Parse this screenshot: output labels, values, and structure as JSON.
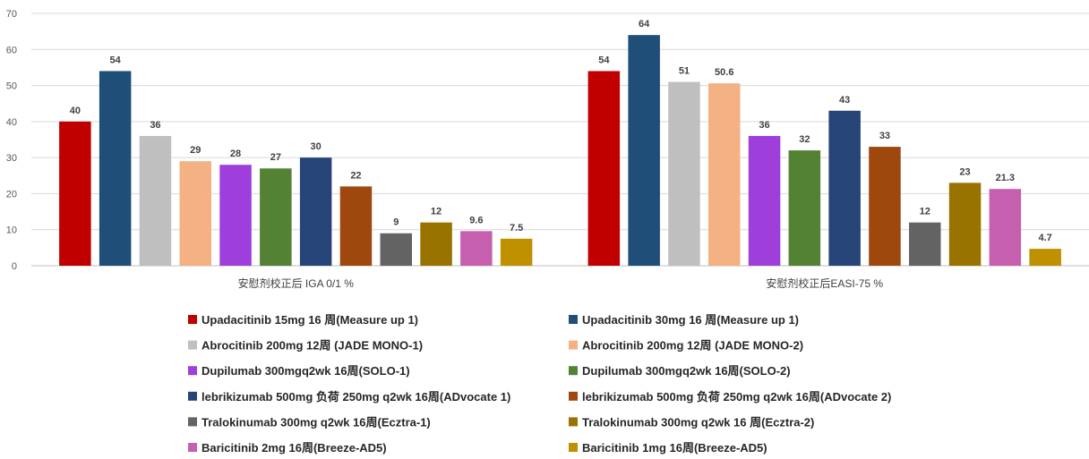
{
  "chart_data": {
    "type": "bar",
    "categories": [
      "安慰剂校正后 IGA 0/1 %",
      "安慰剂校正后EASI-75 %"
    ],
    "ylim": [
      0,
      70
    ],
    "yticks": [
      0,
      10,
      20,
      30,
      40,
      50,
      60,
      70
    ],
    "grid": true,
    "legend_position": "bottom",
    "series": [
      {
        "name": "Upadacitinib 15mg 16 周(Measure up 1)",
        "color": "#C00000",
        "values": [
          40,
          54
        ],
        "labels": [
          "40",
          "54"
        ]
      },
      {
        "name": "Upadacitinib 30mg 16 周(Measure up 1)",
        "color": "#1F4E79",
        "values": [
          54,
          64
        ],
        "labels": [
          "54",
          "64"
        ]
      },
      {
        "name": "Abrocitinib 200mg 12周 (JADE MONO-1)",
        "color": "#BFBFBF",
        "values": [
          36,
          51
        ],
        "labels": [
          "36",
          "51"
        ]
      },
      {
        "name": "Abrocitinib 200mg 12周 (JADE MONO-2)",
        "color": "#F4B183",
        "values": [
          29,
          50.6
        ],
        "labels": [
          "29",
          "50.6"
        ]
      },
      {
        "name": "Dupilumab 300mgq2wk 16周(SOLO-1)",
        "color": "#9E3FDB",
        "values": [
          28,
          36
        ],
        "labels": [
          "28",
          "36"
        ]
      },
      {
        "name": "Dupilumab 300mgq2wk 16周(SOLO-2)",
        "color": "#548235",
        "values": [
          27,
          32
        ],
        "labels": [
          "27",
          "32"
        ]
      },
      {
        "name": "lebrikizumab  500mg 负荷 250mg q2wk 16周(ADvocate 1)",
        "color": "#264478",
        "values": [
          30,
          43
        ],
        "labels": [
          "30",
          "43"
        ]
      },
      {
        "name": "lebrikizumab  500mg 负荷 250mg q2wk 16周(ADvocate 2)",
        "color": "#9E480E",
        "values": [
          22,
          33
        ],
        "labels": [
          "22",
          "33"
        ]
      },
      {
        "name": "Tralokinumab 300mg q2wk 16周(Ecztra-1)",
        "color": "#636363",
        "values": [
          9,
          12
        ],
        "labels": [
          "9",
          "12"
        ]
      },
      {
        "name": "Tralokinumab 300mg q2wk 16 周(Ecztra-2)",
        "color": "#997300",
        "values": [
          12,
          23
        ],
        "labels": [
          "12",
          "23"
        ]
      },
      {
        "name": "Baricitinib 2mg 16周(Breeze-AD5)",
        "color": "#C55FAE",
        "values": [
          9.6,
          21.3
        ],
        "labels": [
          "9.6",
          "21.3"
        ]
      },
      {
        "name": "Baricitinib 1mg 16周(Breeze-AD5)",
        "color": "#BF9000",
        "values": [
          7.5,
          4.7
        ],
        "labels": [
          "7.5",
          "4.7"
        ]
      }
    ]
  }
}
